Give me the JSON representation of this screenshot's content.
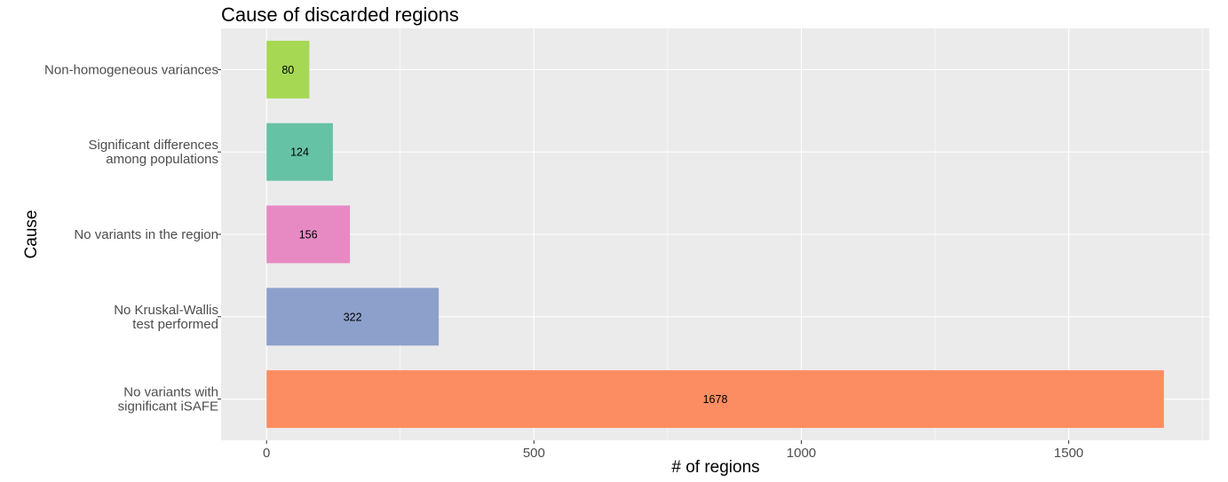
{
  "chart_data": {
    "type": "bar",
    "orientation": "horizontal",
    "title": "Cause of discarded regions",
    "xlabel": "# of regions",
    "ylabel": "Cause",
    "xlim": [
      -85,
      1763
    ],
    "x_ticks": [
      "0",
      "500",
      "1000",
      "1500"
    ],
    "x_tick_values": [
      0,
      500,
      1000,
      1500
    ],
    "categories": [
      [
        "Non-homogeneous variances"
      ],
      [
        "Significant differences",
        "among populations"
      ],
      [
        "No variants in the region"
      ],
      [
        "No Kruskal-Wallis",
        "test performed"
      ],
      [
        "No variants with",
        "significant iSAFE"
      ]
    ],
    "values": [
      80,
      124,
      156,
      322,
      1678
    ],
    "value_labels": [
      "80",
      "124",
      "156",
      "322",
      "1678"
    ],
    "colors": [
      "#a6d854",
      "#66c2a5",
      "#e78ac3",
      "#8da0cb",
      "#fc8d62"
    ],
    "panel_background": "#ebebeb",
    "grid_color": "#ffffff",
    "grid": true,
    "legend": "none"
  }
}
